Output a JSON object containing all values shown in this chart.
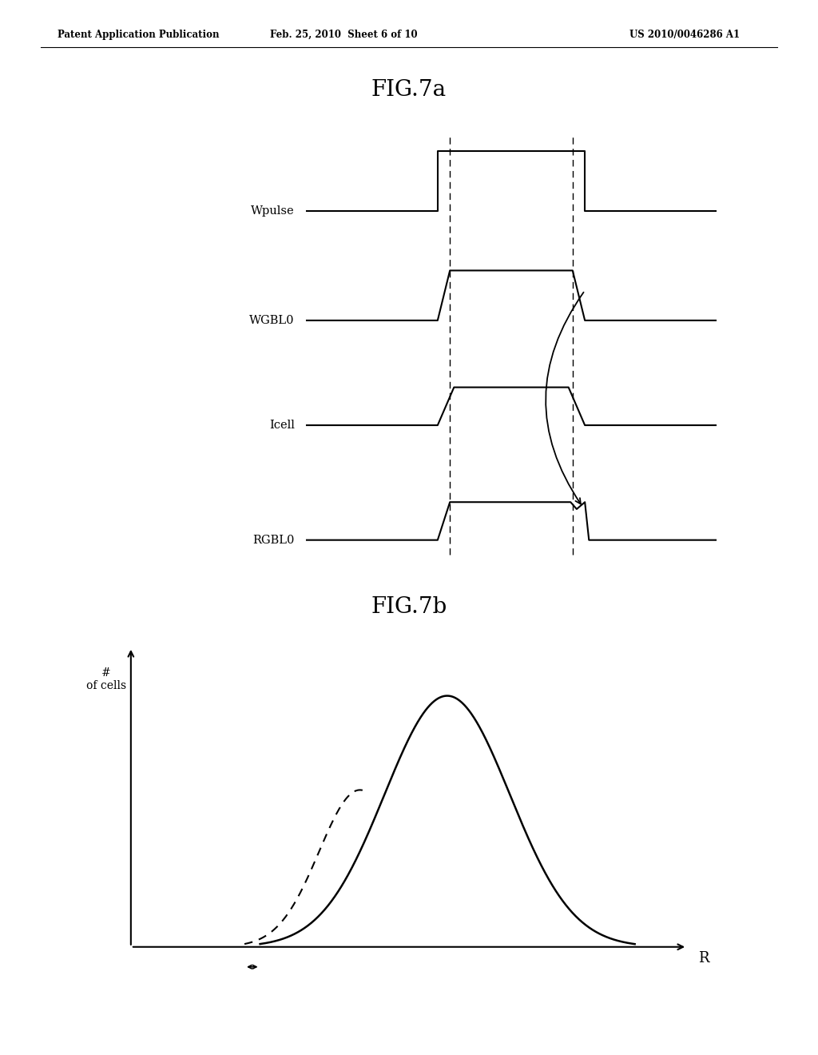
{
  "background_color": "#ffffff",
  "fig_title_7a": "FIG.7a",
  "fig_title_7b": "FIG.7b",
  "header_left": "Patent Application Publication",
  "header_mid": "Feb. 25, 2010  Sheet 6 of 10",
  "header_right": "US 2010/0046286 A1",
  "signal_labels": [
    "Wpulse",
    "WGBL0",
    "Icell",
    "RGBL0"
  ],
  "fig7b_ylabel": "#\nof cells",
  "fig7b_xlabel": "R"
}
